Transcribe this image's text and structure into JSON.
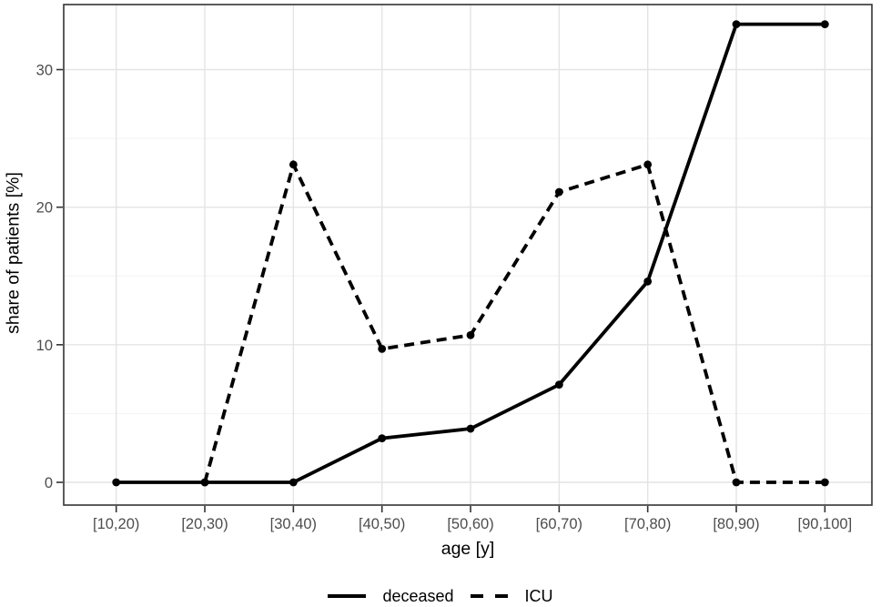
{
  "chart_data": {
    "type": "line",
    "title": "",
    "xlabel": "age [y]",
    "ylabel": "share of patients [%]",
    "categories": [
      "[10,20)",
      "[20,30)",
      "[30,40)",
      "[40,50)",
      "[50,60)",
      "[60,70)",
      "[70,80)",
      "[80,90)",
      "[90,100]"
    ],
    "series": [
      {
        "name": "deceased",
        "linestyle": "solid",
        "values": [
          0,
          0,
          0,
          3.2,
          3.9,
          7.1,
          14.6,
          33.3,
          33.3
        ]
      },
      {
        "name": "ICU",
        "linestyle": "dashed",
        "values": [
          null,
          0,
          23.1,
          9.7,
          10.7,
          21.1,
          23.1,
          0,
          0
        ]
      }
    ],
    "ylim": [
      -1.7,
      34.7
    ],
    "y_major_ticks": [
      0,
      10,
      20,
      30
    ],
    "y_minor_ticks": [
      5,
      15,
      25
    ],
    "grid": "horizontal major+minor, vertical major at each category",
    "legend_position": "bottom-center",
    "marker": "filled-circle"
  },
  "colors": {
    "series_line": "#000000",
    "grid_major": "#e4e4e4",
    "grid_minor": "#f2f2f2",
    "panel_border": "#333333",
    "tick_mark": "#333333",
    "tick_label": "#4d4d4d",
    "axis_title": "#000000",
    "background": "#ffffff"
  },
  "legend": {
    "items": [
      {
        "label": "deceased",
        "style": "solid"
      },
      {
        "label": "ICU",
        "style": "dashed"
      }
    ]
  }
}
